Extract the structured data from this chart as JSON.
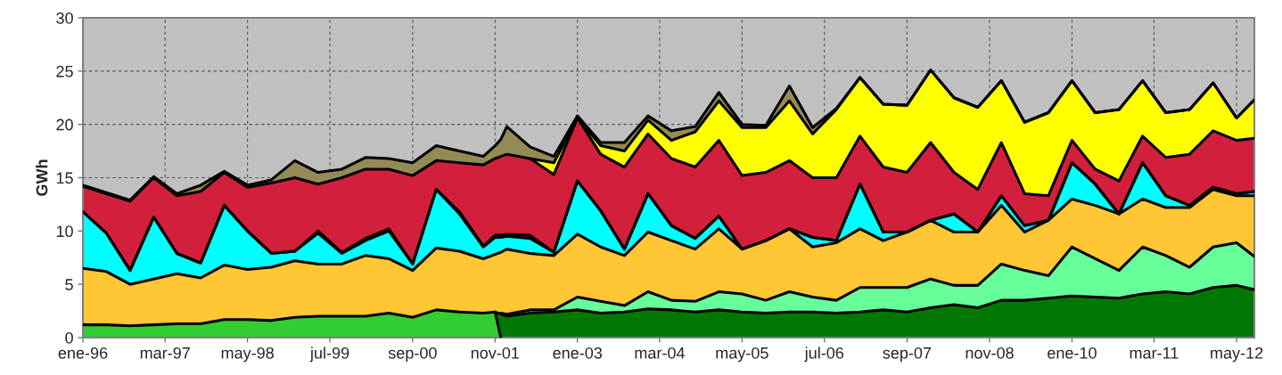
{
  "chart_data": {
    "type": "area",
    "stacked": true,
    "ylabel": "GWh",
    "ylim": [
      0,
      30
    ],
    "yticks": [
      0,
      5,
      10,
      15,
      20,
      25,
      30
    ],
    "grid": true,
    "xlim": [
      "1996-01",
      "2012-08"
    ],
    "xticks": [
      {
        "value": "1996-01",
        "label": "ene-96"
      },
      {
        "value": "1997-03",
        "label": "mar-97"
      },
      {
        "value": "1998-05",
        "label": "may-98"
      },
      {
        "value": "1999-07",
        "label": "jul-99"
      },
      {
        "value": "2000-09",
        "label": "sep-00"
      },
      {
        "value": "2001-11",
        "label": "nov-01"
      },
      {
        "value": "2003-01",
        "label": "ene-03"
      },
      {
        "value": "2004-03",
        "label": "mar-04"
      },
      {
        "value": "2005-05",
        "label": "may-05"
      },
      {
        "value": "2006-07",
        "label": "jul-06"
      },
      {
        "value": "2007-09",
        "label": "sep-07"
      },
      {
        "value": "2008-11",
        "label": "nov-08"
      },
      {
        "value": "2010-01",
        "label": "ene-10"
      },
      {
        "value": "2011-03",
        "label": "mar-11"
      },
      {
        "value": "2012-05",
        "label": "may-12"
      }
    ],
    "x": [
      "1996-01",
      "1996-05",
      "1996-09",
      "1997-01",
      "1997-05",
      "1997-09",
      "1998-01",
      "1998-05",
      "1998-09",
      "1999-01",
      "1999-05",
      "1999-09",
      "2000-01",
      "2000-05",
      "2000-09",
      "2001-01",
      "2001-05",
      "2001-09",
      "2001-11",
      "2001-12",
      "2002-01",
      "2002-05",
      "2002-09",
      "2003-01",
      "2003-05",
      "2003-09",
      "2004-01",
      "2004-05",
      "2004-09",
      "2005-01",
      "2005-05",
      "2005-09",
      "2006-01",
      "2006-05",
      "2006-09",
      "2007-01",
      "2007-05",
      "2007-09",
      "2008-01",
      "2008-05",
      "2008-09",
      "2009-01",
      "2009-05",
      "2009-09",
      "2010-01",
      "2010-05",
      "2010-09",
      "2011-01",
      "2011-05",
      "2011-09",
      "2012-01",
      "2012-05",
      "2012-08"
    ],
    "series": [
      {
        "color": "#33cc33",
        "values": [
          1.2,
          1.2,
          1.1,
          1.2,
          1.3,
          1.3,
          1.7,
          1.7,
          1.6,
          1.9,
          2.0,
          2.0,
          2.0,
          2.3,
          1.9,
          2.6,
          2.4,
          2.3,
          2.4,
          0,
          null,
          null,
          null,
          null,
          null,
          null,
          null,
          null,
          null,
          null,
          null,
          null,
          null,
          null,
          null,
          null,
          null,
          null,
          null,
          null,
          null,
          null,
          null,
          null,
          null,
          null,
          null,
          null,
          null,
          null,
          null,
          null,
          null
        ]
      },
      {
        "color": "#007700",
        "values": [
          null,
          null,
          null,
          null,
          null,
          null,
          null,
          null,
          null,
          null,
          null,
          null,
          null,
          null,
          null,
          null,
          null,
          null,
          0,
          2.2,
          2.0,
          2.3,
          2.4,
          2.6,
          2.3,
          2.4,
          2.7,
          2.6,
          2.4,
          2.6,
          2.4,
          2.3,
          2.4,
          2.4,
          2.3,
          2.4,
          2.6,
          2.4,
          2.8,
          3.1,
          2.8,
          3.5,
          3.5,
          3.7,
          3.9,
          3.8,
          3.7,
          4.1,
          4.3,
          4.1,
          4.7,
          4.9,
          4.5
        ]
      },
      {
        "color": "#66ff99",
        "values": [
          null,
          null,
          null,
          null,
          null,
          null,
          null,
          null,
          null,
          null,
          null,
          null,
          null,
          null,
          null,
          null,
          null,
          null,
          null,
          0.1,
          0.2,
          0.3,
          0.2,
          1.2,
          1.1,
          0.6,
          1.6,
          0.9,
          1.0,
          1.7,
          1.7,
          1.2,
          1.9,
          1.4,
          1.2,
          2.3,
          2.1,
          2.3,
          2.7,
          1.8,
          2.1,
          3.4,
          2.8,
          2.1,
          4.6,
          3.6,
          2.6,
          4.4,
          3.4,
          2.5,
          3.8,
          4.0,
          3.1
        ]
      },
      {
        "color": "#ffc733",
        "values": [
          5.3,
          5.0,
          3.9,
          4.3,
          4.7,
          4.3,
          5.1,
          4.7,
          5.0,
          5.3,
          4.9,
          4.9,
          5.7,
          5.1,
          4.4,
          5.8,
          5.7,
          5.1,
          5.4,
          5.7,
          6.1,
          5.3,
          5.1,
          5.9,
          5.1,
          4.7,
          5.6,
          5.6,
          4.9,
          5.9,
          4.2,
          5.6,
          5.9,
          4.7,
          5.4,
          5.5,
          4.4,
          5.2,
          5.5,
          5.0,
          5.0,
          5.5,
          3.6,
          5.2,
          4.5,
          5.0,
          5.3,
          4.5,
          4.5,
          5.6,
          5.4,
          4.4,
          5.7
        ]
      },
      {
        "color": "#00ffff",
        "values": [
          5.3,
          3.6,
          1.3,
          5.8,
          1.9,
          1.4,
          5.6,
          3.6,
          1.3,
          0.9,
          2.9,
          1.0,
          1.4,
          2.6,
          0.6,
          5.5,
          3.5,
          1.1,
          1.6,
          1.4,
          1.2,
          1.4,
          0.3,
          5.0,
          3.4,
          0.6,
          3.6,
          1.4,
          1.0,
          1.2,
          0,
          0,
          0,
          0.9,
          0.2,
          4.2,
          0.8,
          0,
          0,
          1.7,
          0,
          0.9,
          0.6,
          0,
          3.4,
          2.0,
          0,
          3.4,
          1.1,
          0.2,
          0.2,
          0.2,
          0.4
        ]
      },
      {
        "color": "#7030a0",
        "values": [
          0,
          0,
          0,
          0,
          0,
          0,
          0,
          0,
          0,
          0,
          0.2,
          0.1,
          0.2,
          0.2,
          0,
          0,
          0.2,
          0.1,
          0.2,
          0.2,
          0.2,
          0.3,
          0,
          0,
          0,
          0,
          0,
          0,
          0,
          0,
          0,
          0,
          0,
          0,
          0,
          0,
          0,
          0,
          0,
          0,
          0,
          0,
          0,
          0,
          0,
          0,
          0,
          0,
          0,
          0,
          0,
          0,
          0
        ]
      },
      {
        "color": "#d21f3c",
        "values": [
          2.4,
          3.7,
          6.5,
          3.7,
          5.4,
          6.7,
          3.1,
          4.1,
          6.6,
          6.9,
          4.4,
          7.0,
          6.5,
          5.6,
          8.3,
          2.7,
          4.6,
          7.6,
          7.2,
          7.4,
          7.5,
          7.2,
          7.3,
          5.9,
          5.3,
          7.7,
          5.6,
          6.3,
          6.7,
          7.1,
          6.9,
          6.4,
          6.4,
          5.6,
          5.9,
          4.5,
          6.1,
          5.6,
          7.3,
          3.9,
          4.0,
          5.0,
          3.0,
          2.3,
          2.1,
          1.4,
          3.1,
          2.5,
          3.6,
          4.8,
          5.3,
          5.0,
          5.0
        ]
      },
      {
        "color": "#ffff00",
        "values": [
          null,
          null,
          null,
          null,
          null,
          null,
          null,
          null,
          null,
          null,
          null,
          null,
          null,
          null,
          null,
          null,
          null,
          null,
          null,
          null,
          null,
          0,
          1.1,
          0,
          0.8,
          1.5,
          1.3,
          1.7,
          3.3,
          3.7,
          4.5,
          4.2,
          5.6,
          4.1,
          6.4,
          5.5,
          5.9,
          6.3,
          6.8,
          7.0,
          7.7,
          5.8,
          6.7,
          7.8,
          5.6,
          5.3,
          6.7,
          5.2,
          4.2,
          4.2,
          4.5,
          2.1,
          3.6
        ]
      },
      {
        "color": "#948a54",
        "values": [
          0.1,
          0.1,
          0.1,
          0.1,
          0.2,
          0.6,
          0.1,
          0.2,
          0.3,
          1.6,
          1.1,
          0.8,
          1.1,
          1.0,
          1.2,
          1.4,
          1.1,
          0.8,
          1.2,
          1.6,
          2.6,
          1.1,
          0.6,
          0.2,
          0.3,
          0.8,
          0.4,
          0.9,
          0.5,
          0.8,
          0.3,
          0.2,
          1.4,
          0.6,
          0.1,
          0,
          0,
          0,
          0,
          0,
          0,
          0,
          0,
          0,
          0,
          0,
          0,
          0,
          0,
          0,
          0,
          0,
          0
        ]
      }
    ]
  }
}
